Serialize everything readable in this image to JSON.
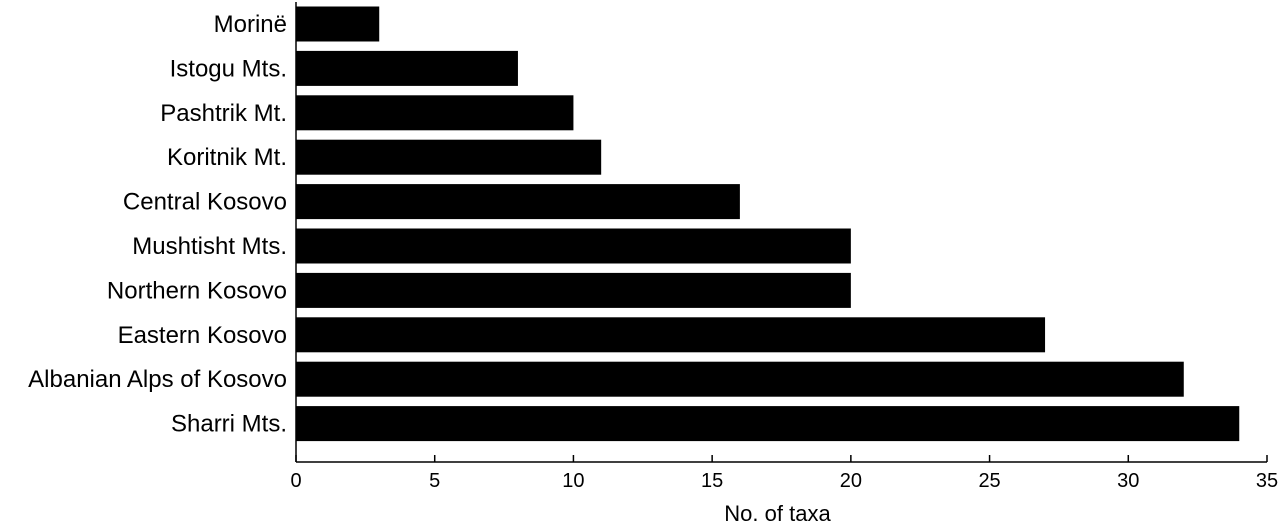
{
  "chart_data": {
    "type": "bar",
    "orientation": "horizontal",
    "categories": [
      "Morinë",
      "Istogu Mts.",
      "Pashtrik Mt.",
      "Koritnik Mt.",
      "Central Kosovo",
      "Mushtisht Mts.",
      "Northern Kosovo",
      "Eastern Kosovo",
      "Albanian Alps of Kosovo",
      "Sharri Mts."
    ],
    "values": [
      3,
      8,
      10,
      11,
      16,
      20,
      20,
      27,
      32,
      34
    ],
    "xlabel": "No. of taxa",
    "ylabel": "",
    "xlim": [
      0,
      35
    ],
    "xticks": [
      0,
      5,
      10,
      15,
      20,
      25,
      30,
      35
    ],
    "bar_color": "#000000",
    "grid": false,
    "legend": false
  }
}
